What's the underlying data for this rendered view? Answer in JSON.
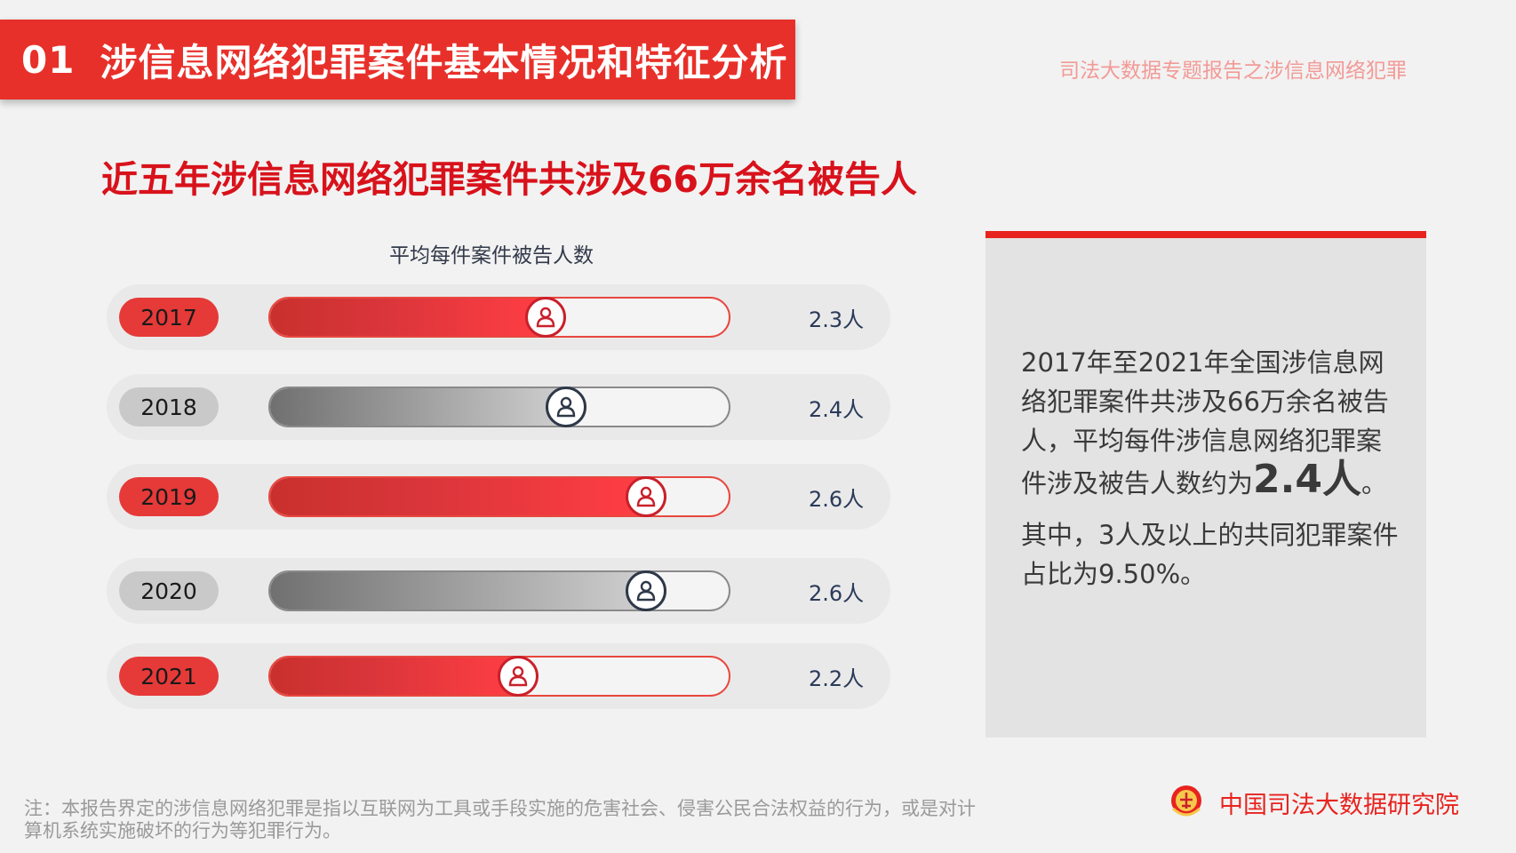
{
  "header": {
    "section_number": "01",
    "section_title": "涉信息网络犯罪案件基本情况和特征分析",
    "report_tag": "司法大数据专题报告之涉信息网络犯罪"
  },
  "headline": "近五年涉信息网络犯罪案件共涉及66万余名被告人",
  "chart_data": {
    "type": "bar",
    "orientation": "horizontal",
    "title": "平均每件案件被告人数",
    "categories": [
      "2017",
      "2018",
      "2019",
      "2020",
      "2021"
    ],
    "values": [
      2.3,
      2.4,
      2.6,
      2.6,
      2.2
    ],
    "value_labels": [
      "2.3人",
      "2.4人",
      "2.6人",
      "2.6人",
      "2.2人"
    ],
    "row_colors": [
      "red",
      "gray",
      "red",
      "gray",
      "red"
    ],
    "fill_fraction": [
      0.6,
      0.645,
      0.82,
      0.82,
      0.54
    ],
    "colors": {
      "red": "#e53a38",
      "gray": "#9a9a9a"
    },
    "marker_icon": "person-icon"
  },
  "side_panel": {
    "p1_a": "2017年至2021年全国涉信息网络犯罪案件共涉及66万余名被告人，平均每件涉信息网络犯罪案件涉及被告人数约为",
    "p1_big": "2.4人",
    "p1_end": "。",
    "p2": "其中，3人及以上的共同犯罪案件占比为9.50%。"
  },
  "footnote": "注：本报告界定的涉信息网络犯罪是指以互联网为工具或手段实施的危害社会、侵害公民合法权益的行为，或是对计算机系统实施破坏的行为等犯罪行为。",
  "org": {
    "name": "中国司法大数据研究院",
    "logo_icon": "court-emblem-icon"
  },
  "colors": {
    "accent": "#e8302a",
    "headline": "#d8121b"
  }
}
